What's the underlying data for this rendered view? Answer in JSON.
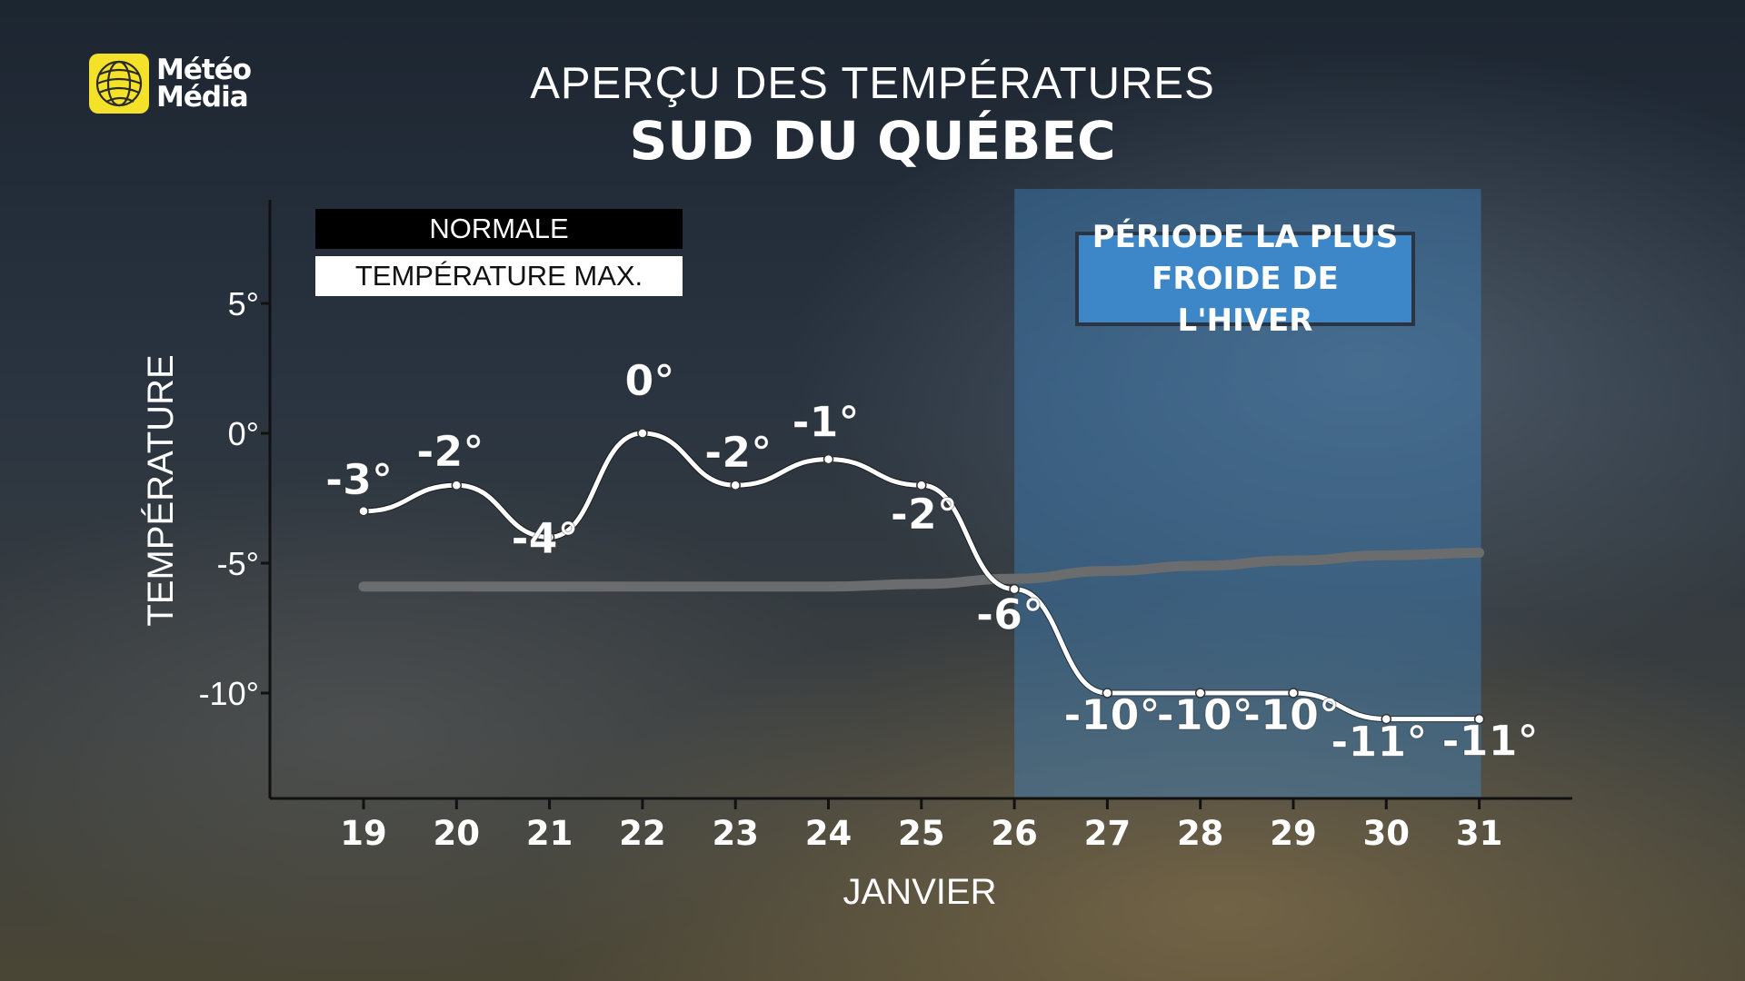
{
  "brand": {
    "line1": "Météo",
    "line2": "Média",
    "logo_color": "#f3e12a"
  },
  "title": "APERÇU DES TEMPÉRATURES",
  "subtitle": "SUD DU QUÉBEC",
  "legend": {
    "normal_label": "NORMALE",
    "max_label": "TEMPÉRATURE MAX."
  },
  "annotation": {
    "line1": "PÉRIODE LA PLUS",
    "line2": "FROIDE DE L'HIVER",
    "color": "#3d87c8",
    "start_x": "26",
    "end_x": "31"
  },
  "chart_data": {
    "type": "line",
    "xlabel": "JANVIER",
    "ylabel": "TEMPÉRATURE",
    "categories": [
      "19",
      "20",
      "21",
      "22",
      "23",
      "24",
      "25",
      "26",
      "27",
      "28",
      "29",
      "30",
      "31"
    ],
    "y_ticks": [
      5,
      0,
      -5,
      -10
    ],
    "y_tick_labels": [
      "5°",
      "0°",
      "-5°",
      "-10°"
    ],
    "ylim": [
      -14,
      9
    ],
    "series": [
      {
        "name": "TEMPÉRATURE MAX.",
        "color": "#ffffff",
        "values": [
          -3,
          -2,
          -4,
          0,
          -2,
          -1,
          -2,
          -6,
          -10,
          -10,
          -10,
          -11,
          -11
        ],
        "labels": [
          "-3°",
          "-2°",
          "-4°",
          "0°",
          "-2°",
          "-1°",
          "-2°",
          "-6°",
          "-10°",
          "-10°",
          "-10°",
          "-11°",
          "-11°"
        ]
      },
      {
        "name": "NORMALE",
        "color": "#6a6c6e",
        "values": [
          -5.9,
          -5.9,
          -5.9,
          -5.9,
          -5.9,
          -5.9,
          -5.8,
          -5.6,
          -5.3,
          -5.1,
          -4.9,
          -4.7,
          -4.6
        ]
      }
    ],
    "legend_position": "top-left",
    "grid": false
  }
}
